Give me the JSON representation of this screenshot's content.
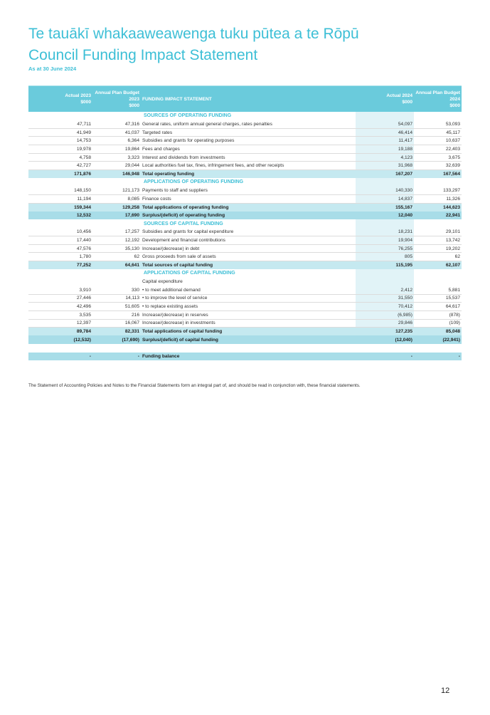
{
  "title_maori": "Te tauākī whakaaweawenga tuku pūtea a te Rōpū",
  "title": "Council Funding Impact Statement",
  "subtitle": "As at 30 June 2024",
  "header": {
    "actual2023": [
      "Actual 2023",
      "$000"
    ],
    "budget2023": [
      "Annual Plan Budget",
      "2023",
      "$000"
    ],
    "description": "FUNDING IMPACT STATEMENT",
    "actual2024": [
      "Actual 2024",
      "$000"
    ],
    "budget2024": [
      "Annual Plan Budget",
      "2024",
      "$000"
    ]
  },
  "rows": [
    {
      "type": "sec",
      "desc": "SOURCES OF OPERATING FUNDING"
    },
    {
      "type": "data",
      "a23": "47,711",
      "b23": "47,316",
      "desc": "General rates, uniform annual general charges, rates penalties",
      "a24": "54,097",
      "b24": "53,093"
    },
    {
      "type": "data",
      "a23": "41,949",
      "b23": "41,037",
      "desc": "Targeted rates",
      "a24": "46,414",
      "b24": "45,117"
    },
    {
      "type": "data",
      "a23": "14,753",
      "b23": "6,364",
      "desc": "Subsidies and grants for operating purposes",
      "a24": "11,417",
      "b24": "10,637"
    },
    {
      "type": "data",
      "a23": "19,978",
      "b23": "19,864",
      "desc": "Fees and charges",
      "a24": "19,188",
      "b24": "22,403"
    },
    {
      "type": "data",
      "a23": "4,758",
      "b23": "3,323",
      "desc": "Interest and dividends from investments",
      "a24": "4,123",
      "b24": "3,675"
    },
    {
      "type": "data",
      "a23": "42,727",
      "b23": "29,044",
      "desc": "Local authorities fuel tax, fines, infringement fees, and other receipts",
      "a24": "31,968",
      "b24": "32,639"
    },
    {
      "type": "total",
      "a23": "171,876",
      "b23": "146,948",
      "desc": "Total operating funding",
      "a24": "167,207",
      "b24": "167,564"
    },
    {
      "type": "sec",
      "desc": "APPLICATIONS OF OPERATING FUNDING"
    },
    {
      "type": "data",
      "a23": "148,150",
      "b23": "121,173",
      "desc": "Payments to staff and suppliers",
      "a24": "140,330",
      "b24": "133,297"
    },
    {
      "type": "data",
      "a23": "11,194",
      "b23": "8,085",
      "desc": "Finance costs",
      "a24": "14,837",
      "b24": "11,326"
    },
    {
      "type": "total",
      "a23": "159,344",
      "b23": "129,258",
      "desc": "Total applications of operating funding",
      "a24": "155,167",
      "b24": "144,623"
    },
    {
      "type": "surplus",
      "a23": "12,532",
      "b23": "17,690",
      "desc": "Surplus/(deficit) of operating funding",
      "a24": "12,040",
      "b24": "22,941"
    },
    {
      "type": "sec",
      "desc": "SOURCES OF CAPITAL FUNDING"
    },
    {
      "type": "data",
      "a23": "10,456",
      "b23": "17,257",
      "desc": "Subsidies and grants for capital expenditure",
      "a24": "18,231",
      "b24": "29,101"
    },
    {
      "type": "data",
      "a23": "17,440",
      "b23": "12,192",
      "desc": "Development and financial contributions",
      "a24": "19,904",
      "b24": "13,742"
    },
    {
      "type": "data",
      "a23": "47,576",
      "b23": "35,130",
      "desc": "Increase/(decrease) in debt",
      "a24": "76,255",
      "b24": "19,202"
    },
    {
      "type": "data",
      "a23": "1,780",
      "b23": "62",
      "desc": "Gross proceeds from sale of assets",
      "a24": "805",
      "b24": "62"
    },
    {
      "type": "total",
      "a23": "77,252",
      "b23": "64,641",
      "desc": "Total sources of capital funding",
      "a24": "115,195",
      "b24": "62,107"
    },
    {
      "type": "sec",
      "desc": "APPLICATIONS OF CAPITAL FUNDING"
    },
    {
      "type": "plain",
      "desc": "Capital expenditure"
    },
    {
      "type": "data",
      "a23": "3,910",
      "b23": "330",
      "desc": "• to meet additional demand",
      "a24": "2,412",
      "b24": "5,881"
    },
    {
      "type": "data",
      "a23": "27,446",
      "b23": "14,113",
      "desc": "• to improve the level of service",
      "a24": "31,550",
      "b24": "15,537"
    },
    {
      "type": "data",
      "a23": "42,496",
      "b23": "51,605",
      "desc": "• to replace existing assets",
      "a24": "70,412",
      "b24": "64,617"
    },
    {
      "type": "data",
      "a23": "3,535",
      "b23": "216",
      "desc": "Increase/(decrease) in reserves",
      "a24": "(6,985)",
      "b24": "(878)"
    },
    {
      "type": "data",
      "a23": "12,397",
      "b23": "16,067",
      "desc": "Increase/(decrease) in investments",
      "a24": "29,846",
      "b24": "(109)"
    },
    {
      "type": "total",
      "a23": "89,784",
      "b23": "82,331",
      "desc": "Total applications of capital funding",
      "a24": "127,235",
      "b24": "85,048"
    },
    {
      "type": "surplus",
      "a23": "(12,532)",
      "b23": "(17,690)",
      "desc": "Surplus/(deficit) of capital funding",
      "a24": "(12,040)",
      "b24": "(22,941)"
    },
    {
      "type": "blank"
    },
    {
      "type": "balance",
      "a23": "-",
      "b23": "-",
      "desc": "Funding balance",
      "a24": "-",
      "b24": "-"
    }
  ],
  "footnote": "The Statement of Accounting Policies and Notes to the Financial Statements form an integral part of, and should be read in conjunction with, these financial statements.",
  "page_number": "12",
  "colors": {
    "accent": "#3dbfd6",
    "header_bg": "#6acbdc",
    "total_bg": "#c5e9f0",
    "surplus_bg": "#a8dde8",
    "column_bg": "#e1f3f7"
  }
}
